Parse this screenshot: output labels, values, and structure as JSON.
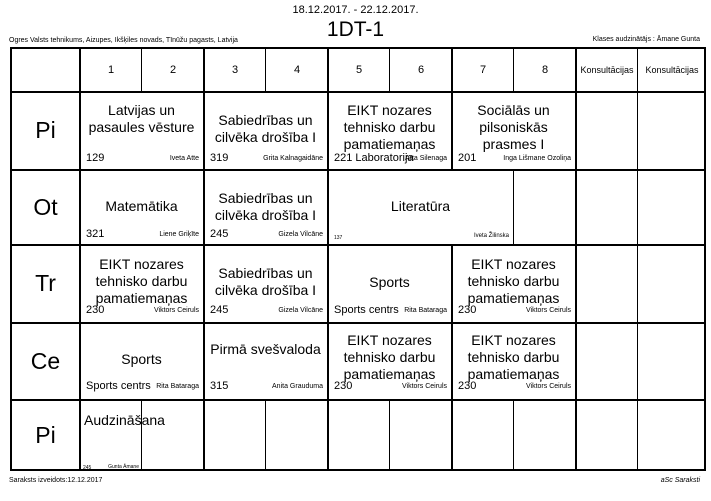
{
  "header": {
    "date_range": "18.12.2017. - 22.12.2017.",
    "class_name": "1DT-1",
    "school": "Ogres Valsts tehnikums, Aizupes, Ikšķiles novads, Tīnūžu pagasts, Latvija",
    "class_teacher": "Klases audzinātājs : Āmane Gunta"
  },
  "columns": [
    "1",
    "2",
    "3",
    "4",
    "5",
    "6",
    "7",
    "8",
    "Konsultācijas",
    "Konsultācijas"
  ],
  "days": [
    "Pi",
    "Ot",
    "Tr",
    "Ce",
    "Pi"
  ],
  "lessons": {
    "mon_12": {
      "subject": "Latvijas un pasaules vēsture",
      "room": "129",
      "teacher": "Iveta Atte"
    },
    "mon_34": {
      "subject": "Sabiedrības un cilvēka drošība I",
      "room": "319",
      "teacher": "Grita Kalnagaidāne"
    },
    "mon_56": {
      "subject": "EIKT nozares tehnisko darbu pamatiemaņas",
      "room": "221 Laboratorija",
      "teacher": "Arta Silenaga"
    },
    "mon_78": {
      "subject": "Sociālās un pilsoniskās prasmes I",
      "room": "201",
      "teacher": "Inga Lišmane Ozoliņa"
    },
    "tue_12": {
      "subject": "Matemātika",
      "room": "321",
      "teacher": "Liene Griķīte"
    },
    "tue_34": {
      "subject": "Sabiedrības un cilvēka drošība I",
      "room": "245",
      "teacher": "Gizela Vilcāne"
    },
    "tue_57": {
      "subject": "Literatūra",
      "room": "137",
      "teacher": "Iveta Žilinska"
    },
    "wed_12": {
      "subject": "EIKT nozares tehnisko darbu pamatiemaņas",
      "room": "230",
      "teacher": "Viktors Ceiruls"
    },
    "wed_34": {
      "subject": "Sabiedrības un cilvēka drošība I",
      "room": "245",
      "teacher": "Gizela Vilcāne"
    },
    "wed_56": {
      "subject": "Sports",
      "room": "Sports centrs",
      "teacher": "Rita Bataraga"
    },
    "wed_78": {
      "subject": "EIKT nozares tehnisko darbu pamatiemaņas",
      "room": "230",
      "teacher": "Viktors Ceiruls"
    },
    "thu_12": {
      "subject": "Sports",
      "room": "Sports centrs",
      "teacher": "Rita Bataraga"
    },
    "thu_34": {
      "subject": "Pirmā svešvaloda",
      "room": "315",
      "teacher": "Anita Grauduma"
    },
    "thu_56": {
      "subject": "EIKT nozares tehnisko darbu pamatiemaņas",
      "room": "230",
      "teacher": "Viktors Ceiruls"
    },
    "thu_78": {
      "subject": "EIKT nozares tehnisko darbu pamatiemaņas",
      "room": "230",
      "teacher": "Viktors Ceiruls"
    },
    "fri_1": {
      "subject": "Audzināšana",
      "room": "245",
      "teacher": "Gunta Āmane"
    }
  },
  "footer": {
    "created": "Saraksts izveidots:12.12.2017",
    "credit": "aSc Saraksti"
  }
}
